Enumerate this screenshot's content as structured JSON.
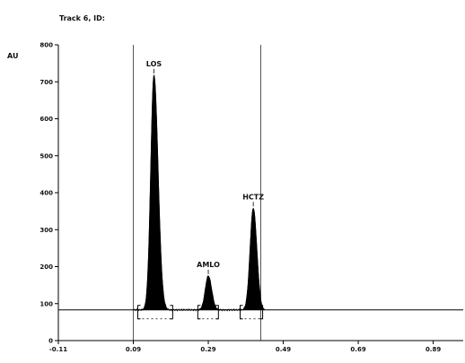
{
  "chart_data": {
    "type": "area",
    "title": "Track 6, ID:",
    "ylabel": "AU",
    "xlabel": "",
    "x_tick_labels": [
      "-0.11",
      "0.09",
      "0.29",
      "0.49",
      "0.69",
      "0.89"
    ],
    "x_ticks": [
      -0.11,
      0.09,
      0.29,
      0.49,
      0.69,
      0.89
    ],
    "y_tick_labels": [
      "0",
      "100",
      "200",
      "300",
      "400",
      "500",
      "600",
      "700",
      "800"
    ],
    "y_ticks": [
      0,
      100,
      200,
      300,
      400,
      500,
      600,
      700,
      800
    ],
    "xlim": [
      -0.11,
      0.97
    ],
    "ylim": [
      0,
      800
    ],
    "baseline": 83,
    "region": [
      0.09,
      0.43
    ],
    "peaks": [
      {
        "label": "LOS",
        "x": 0.145,
        "height": 718,
        "sigma_left": 0.0085,
        "sigma_right": 0.011
      },
      {
        "label": "AMLO",
        "x": 0.29,
        "height": 175,
        "sigma_left": 0.008,
        "sigma_right": 0.009
      },
      {
        "label": "HCTZ",
        "x": 0.41,
        "height": 358,
        "sigma_left": 0.0085,
        "sigma_right": 0.0095
      }
    ],
    "integration_windows": [
      [
        0.102,
        0.195
      ],
      [
        0.262,
        0.317
      ],
      [
        0.375,
        0.435
      ]
    ],
    "colors": {
      "fill": "#000000",
      "line": "#000000",
      "axis": "#000000"
    }
  }
}
